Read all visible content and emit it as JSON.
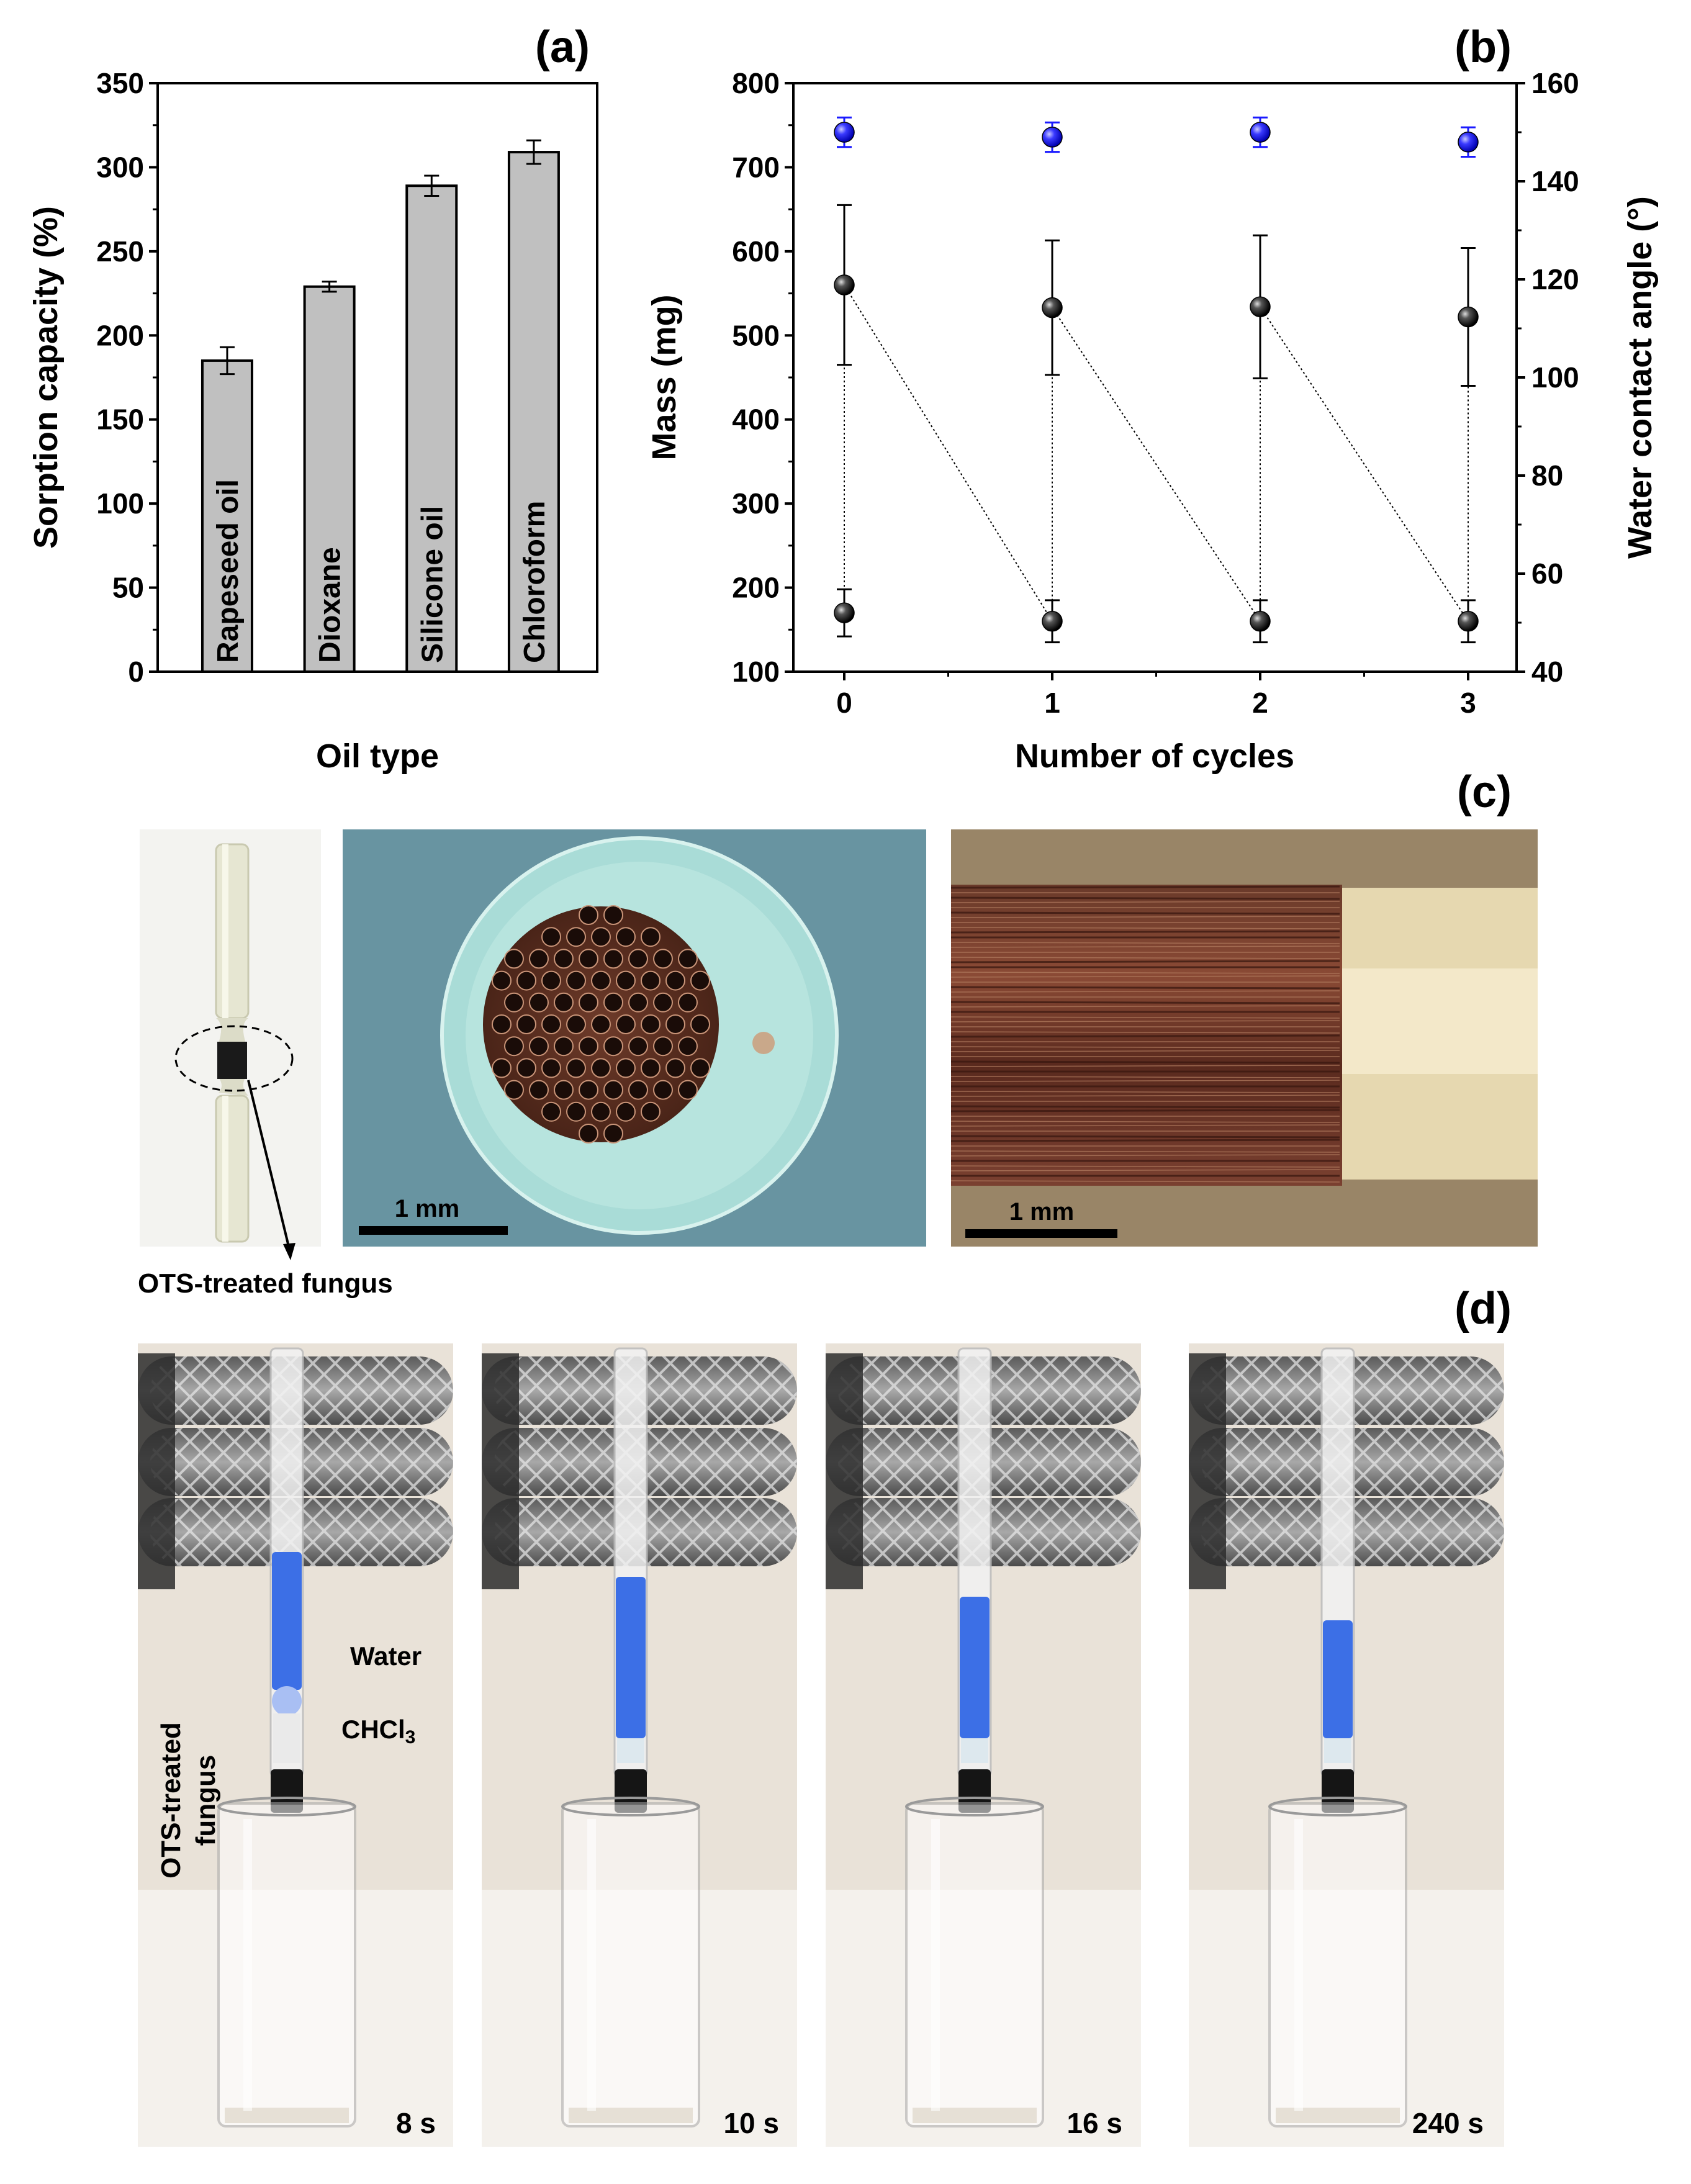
{
  "panels": {
    "a": "(a)",
    "b": "(b)",
    "c": "(c)",
    "d": "(d)"
  },
  "chart_data": [
    {
      "type": "bar",
      "panel": "(a)",
      "xlabel": "Oil type",
      "ylabel": "Sorption capacity (%)",
      "ylim": [
        0,
        350
      ],
      "yticks": [
        "0",
        "50",
        "100",
        "150",
        "200",
        "250",
        "300",
        "350"
      ],
      "categories": [
        "Rapeseed oil",
        "Dioxane",
        "Silicone oil",
        "Chloroform"
      ],
      "values": [
        185,
        229,
        289,
        309
      ],
      "errors": [
        8,
        3,
        6,
        7
      ],
      "bar_color": "#c0c0c0"
    },
    {
      "type": "scatter",
      "panel": "(b)",
      "xlabel": "Number of cycles",
      "ylabel": "Mass (mg)",
      "ylabel_right": "Water contact angle (°)",
      "ylim": [
        100,
        800
      ],
      "ylim_right": [
        40,
        160
      ],
      "xticks": [
        "0",
        "1",
        "2",
        "3"
      ],
      "yticks": [
        "100",
        "200",
        "300",
        "400",
        "500",
        "600",
        "700",
        "800"
      ],
      "yticks_right": [
        "40",
        "60",
        "80",
        "100",
        "120",
        "140",
        "160"
      ],
      "series": [
        {
          "axis": "left",
          "color": "#111111",
          "points": [
            {
              "x": 0,
              "y": 560,
              "err": 95
            },
            {
              "x": 1,
              "y": 533,
              "err": 80
            },
            {
              "x": 2,
              "y": 534,
              "err": 85
            },
            {
              "x": 3,
              "y": 522,
              "err": 82
            }
          ]
        },
        {
          "axis": "left",
          "color": "#111111",
          "points": [
            {
              "x": 0,
              "y": 170,
              "err": 28
            },
            {
              "x": 1,
              "y": 160,
              "err": 25
            },
            {
              "x": 2,
              "y": 160,
              "err": 25
            },
            {
              "x": 3,
              "y": 160,
              "err": 25
            }
          ]
        },
        {
          "axis": "right",
          "color": "#1a1aff",
          "points": [
            {
              "x": 0,
              "y": 150,
              "err": 3
            },
            {
              "x": 1,
              "y": 149,
              "err": 3
            },
            {
              "x": 2,
              "y": 150,
              "err": 3
            },
            {
              "x": 3,
              "y": 148,
              "err": 3
            }
          ]
        }
      ]
    }
  ],
  "photos": {
    "c_label": "OTS-treated fungus",
    "c_scale1": "1 mm",
    "c_scale2": "1 mm",
    "d_water": "Water",
    "d_chcl3": "CHCl",
    "d_chcl3_sub": "3",
    "d_side1": "OTS-treated",
    "d_side2": "fungus",
    "d_times": [
      "8 s",
      "10 s",
      "16 s",
      "240 s"
    ]
  }
}
